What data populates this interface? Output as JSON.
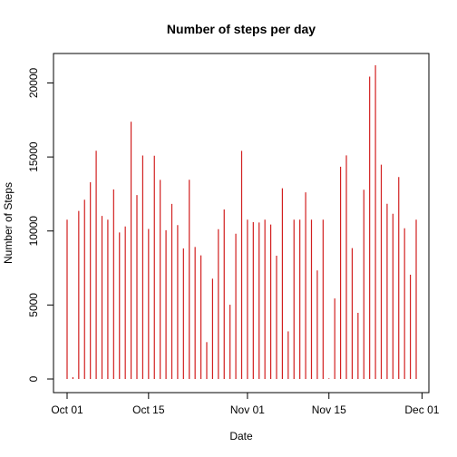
{
  "chart_data": {
    "type": "bar",
    "title": "Number of steps per day",
    "xlabel": "Date",
    "ylabel": "Number of Steps",
    "x": [
      "2012-10-01",
      "2012-10-02",
      "2012-10-03",
      "2012-10-04",
      "2012-10-05",
      "2012-10-06",
      "2012-10-07",
      "2012-10-08",
      "2012-10-09",
      "2012-10-10",
      "2012-10-11",
      "2012-10-12",
      "2012-10-13",
      "2012-10-14",
      "2012-10-15",
      "2012-10-16",
      "2012-10-17",
      "2012-10-18",
      "2012-10-19",
      "2012-10-20",
      "2012-10-21",
      "2012-10-22",
      "2012-10-23",
      "2012-10-24",
      "2012-10-25",
      "2012-10-26",
      "2012-10-27",
      "2012-10-28",
      "2012-10-29",
      "2012-10-30",
      "2012-10-31",
      "2012-11-01",
      "2012-11-02",
      "2012-11-03",
      "2012-11-04",
      "2012-11-05",
      "2012-11-06",
      "2012-11-07",
      "2012-11-08",
      "2012-11-09",
      "2012-11-10",
      "2012-11-11",
      "2012-11-12",
      "2012-11-13",
      "2012-11-14",
      "2012-11-15",
      "2012-11-16",
      "2012-11-17",
      "2012-11-18",
      "2012-11-19",
      "2012-11-20",
      "2012-11-21",
      "2012-11-22",
      "2012-11-23",
      "2012-11-24",
      "2012-11-25",
      "2012-11-26",
      "2012-11-27",
      "2012-11-28",
      "2012-11-29",
      "2012-11-30"
    ],
    "values": [
      10766,
      126,
      11352,
      12116,
      13294,
      15420,
      11015,
      10766,
      12811,
      9900,
      10304,
      17382,
      12426,
      15098,
      10139,
      15084,
      13452,
      10056,
      11829,
      10395,
      8821,
      13460,
      8918,
      8355,
      2492,
      6778,
      10119,
      11458,
      5018,
      9819,
      15414,
      10766,
      10600,
      10571,
      10766,
      10439,
      8334,
      12883,
      3219,
      10766,
      10766,
      12608,
      10765,
      7336,
      10766,
      41,
      5441,
      14339,
      15110,
      8841,
      4472,
      12787,
      20427,
      21194,
      14478,
      11834,
      11162,
      13646,
      10183,
      7047,
      10766
    ],
    "series_color": "#d21f1f",
    "ylim": [
      0,
      21194
    ],
    "yticks": [
      0,
      5000,
      10000,
      15000,
      20000
    ],
    "xticks": [
      {
        "label": "Oct 01",
        "date": "2012-10-01"
      },
      {
        "label": "Oct 15",
        "date": "2012-10-15"
      },
      {
        "label": "Nov 01",
        "date": "2012-11-01"
      },
      {
        "label": "Nov 15",
        "date": "2012-11-15"
      },
      {
        "label": "Dec 01",
        "date": "2012-12-01"
      }
    ],
    "ytick_orientation": "vertical",
    "grid": false
  }
}
